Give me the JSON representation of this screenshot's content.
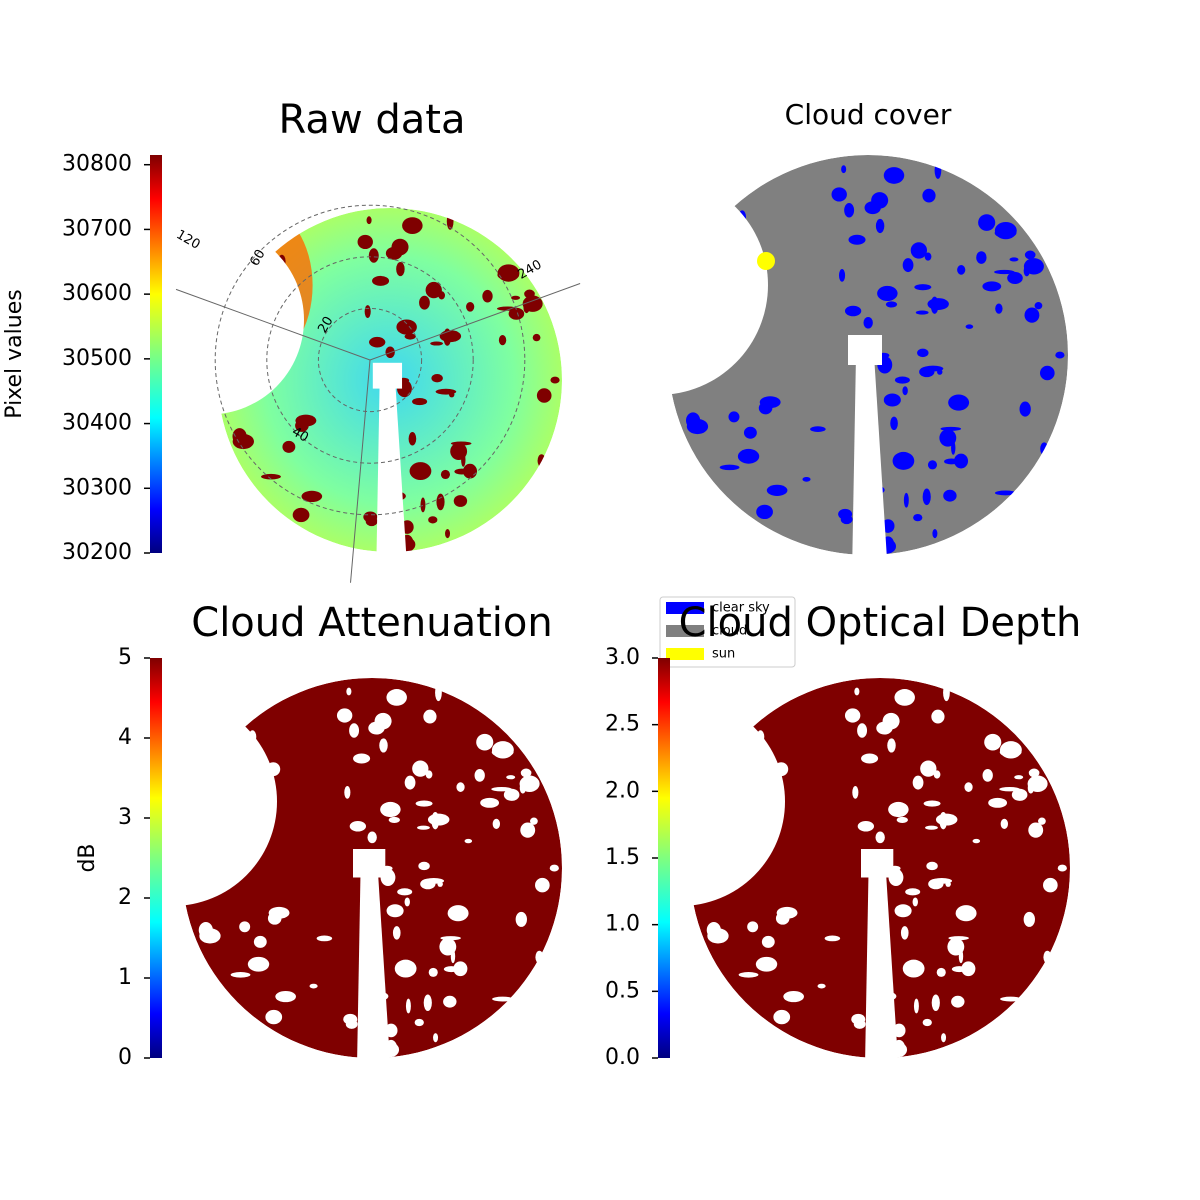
{
  "chart_data": [
    {
      "type": "image",
      "title": "Raw data",
      "ylabel": "Pixel values",
      "colormap": "jet",
      "colorbar": true,
      "ylim": [
        30200,
        30815
      ],
      "yticks": [
        30200,
        30300,
        30400,
        30500,
        30600,
        30700,
        30800
      ],
      "polar_labels": [
        "120",
        "240",
        "60",
        "40",
        "20"
      ]
    },
    {
      "type": "image",
      "title": "Cloud cover",
      "legend_loc": "lower left",
      "legend": [
        {
          "name": "clear sky",
          "color": "#0000ff"
        },
        {
          "name": "cloud",
          "color": "#808080"
        },
        {
          "name": "sun",
          "color": "#ffff00"
        }
      ]
    },
    {
      "type": "image",
      "title": "Cloud Attenuation",
      "ylabel": "dB",
      "colormap": "jet",
      "colorbar": true,
      "ylim": [
        0,
        5
      ],
      "yticks": [
        0,
        1,
        2,
        3,
        4,
        5
      ]
    },
    {
      "type": "image",
      "title": "Cloud Optical Depth",
      "colormap": "jet",
      "colorbar": true,
      "ylim": [
        0,
        3
      ],
      "yticks": [
        {
          "value": 0,
          "label": "0.0"
        },
        {
          "value": 0.5,
          "label": "0.5"
        },
        {
          "value": 1,
          "label": "1.0"
        },
        {
          "value": 1.5,
          "label": "1.5"
        },
        {
          "value": 2,
          "label": "2.0"
        },
        {
          "value": 2.5,
          "label": "2.5"
        },
        {
          "value": 3,
          "label": "3.0"
        }
      ]
    }
  ]
}
